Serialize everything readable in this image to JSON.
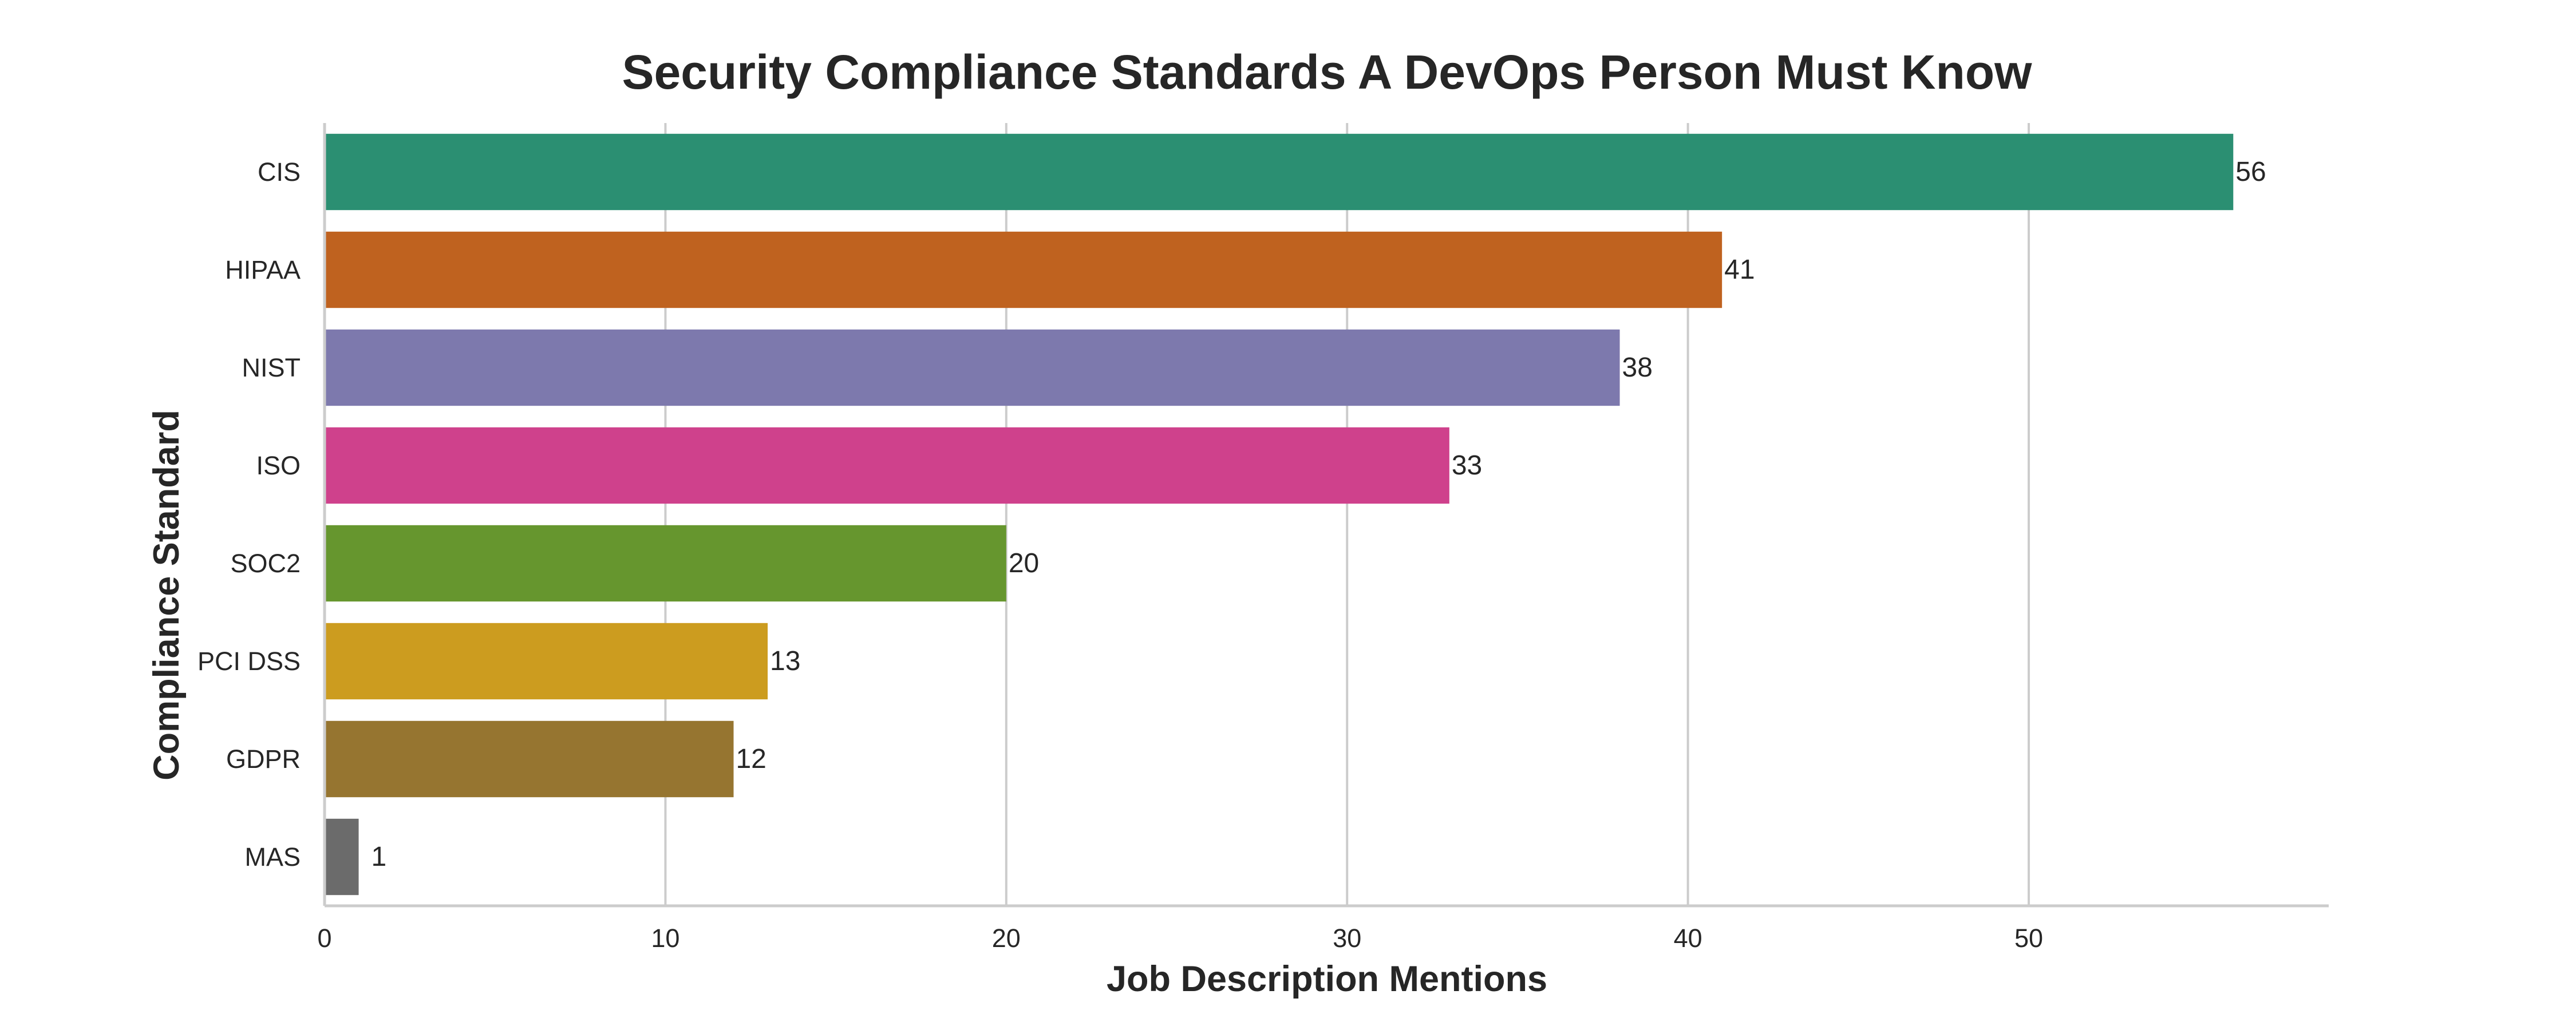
{
  "chart_data": {
    "type": "bar",
    "orientation": "horizontal",
    "title": "Security Compliance Standards A DevOps Person Must Know",
    "xlabel": "Job Description Mentions",
    "ylabel": "Compliance Standard",
    "categories": [
      "CIS",
      "HIPAA",
      "NIST",
      "ISO",
      "SOC2",
      "PCI DSS",
      "GDPR",
      "MAS"
    ],
    "values": [
      56,
      41,
      38,
      33,
      20,
      13,
      12,
      1
    ],
    "value_labels": [
      "56",
      "41",
      "38",
      "33",
      "20",
      "13",
      "12",
      "1"
    ],
    "colors": [
      "#2b8f72",
      "#bf621f",
      "#7d79ad",
      "#cf418c",
      "#66962e",
      "#cc9c1f",
      "#967530",
      "#6b6b6b"
    ],
    "xticks": [
      0,
      10,
      20,
      30,
      40,
      50
    ],
    "xtick_labels": [
      "0",
      "10",
      "20",
      "30",
      "40",
      "50"
    ],
    "xlim": [
      0,
      58.8
    ],
    "grid": "vertical",
    "legend": "none"
  }
}
